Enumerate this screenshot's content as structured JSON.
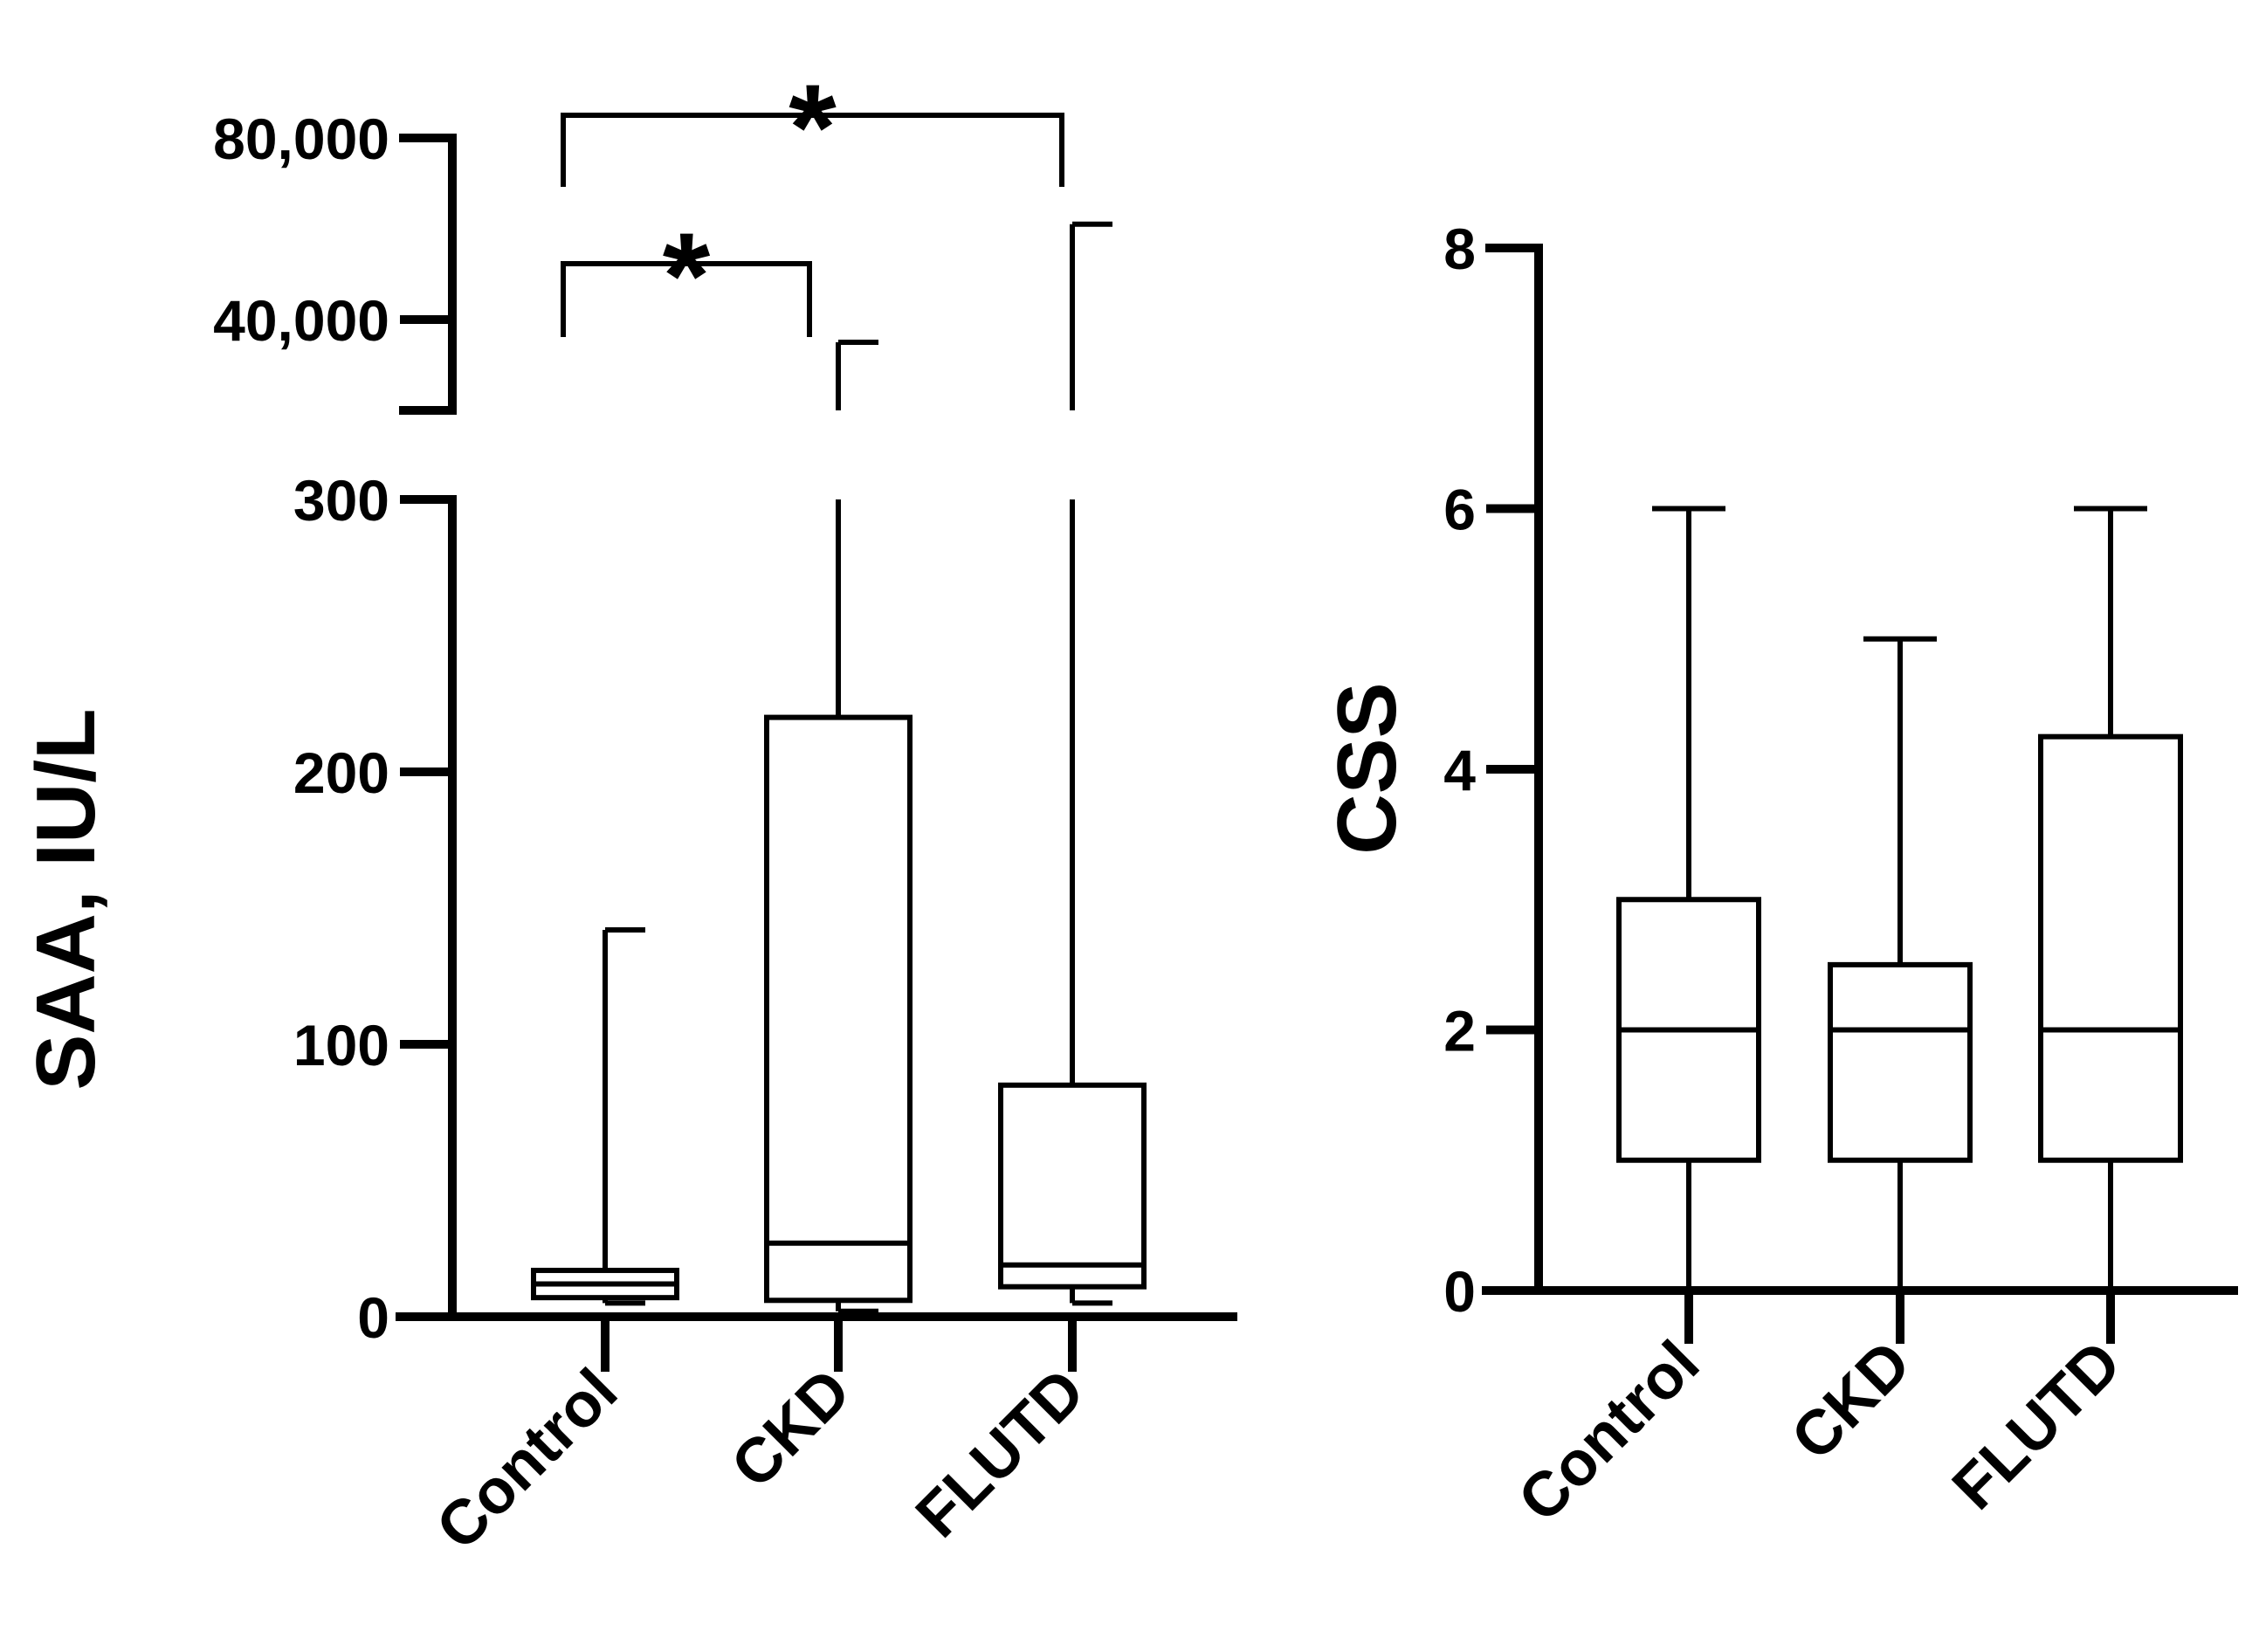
{
  "chart_data": [
    {
      "type": "boxplot",
      "ylabel": "SAA, IU/L",
      "axis_break": true,
      "y_lower_range": [
        0,
        300
      ],
      "y_lower_ticks": [
        0,
        100,
        200,
        300
      ],
      "y_lower_tick_labels": [
        "0",
        "100",
        "200",
        "300"
      ],
      "y_upper_range": [
        20000,
        80000
      ],
      "y_upper_ticks": [
        40000,
        80000
      ],
      "y_upper_tick_labels": [
        "40,000",
        "80,000"
      ],
      "categories": [
        "Control",
        "CKD",
        "FLUTD"
      ],
      "boxes": [
        {
          "name": "Control",
          "min": 5,
          "q1": 7,
          "median": 12,
          "q3": 17,
          "max": 142
        },
        {
          "name": "CKD",
          "min": 2,
          "q1": 6,
          "median": 27,
          "q3": 220,
          "max": 35000
        },
        {
          "name": "FLUTD",
          "min": 5,
          "q1": 11,
          "median": 19,
          "q3": 85,
          "max": 61000
        }
      ],
      "significance": [
        {
          "from": "Control",
          "to": "CKD",
          "label": "*"
        },
        {
          "from": "Control",
          "to": "FLUTD",
          "label": "*"
        }
      ]
    },
    {
      "type": "boxplot",
      "ylabel": "CSS",
      "ylim": [
        0,
        8
      ],
      "yticks": [
        0,
        2,
        4,
        6,
        8
      ],
      "ytick_labels": [
        "0",
        "2",
        "4",
        "6",
        "8"
      ],
      "categories": [
        "Control",
        "CKD",
        "FLUTD"
      ],
      "boxes": [
        {
          "name": "Control",
          "min": 0,
          "q1": 1,
          "median": 2,
          "q3": 3,
          "max": 6
        },
        {
          "name": "CKD",
          "min": 0,
          "q1": 1,
          "median": 2,
          "q3": 2.5,
          "max": 5
        },
        {
          "name": "FLUTD",
          "min": 0,
          "q1": 1,
          "median": 2,
          "q3": 4.25,
          "max": 6
        }
      ]
    }
  ]
}
